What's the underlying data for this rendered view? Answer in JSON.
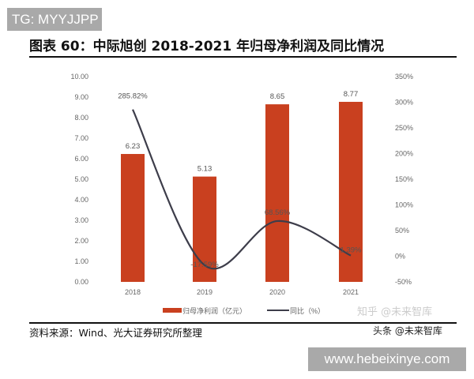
{
  "watermarks": {
    "top_left": "TG: MYYJJPP",
    "bottom_right": "www.hebeixinye.com",
    "toutiao": "头条 @未来智库",
    "zhihu": "知乎 @未来智库"
  },
  "title": "图表 60：中际旭创 2018-2021 年归母净利润及同比情况",
  "source": "资料来源：Wind、光大证券研究所整理",
  "colors": {
    "bar": "#c9401f",
    "line": "#3d3d4a"
  },
  "chart_data": {
    "type": "bar+line",
    "categories": [
      "2018",
      "2019",
      "2020",
      "2021"
    ],
    "series": [
      {
        "name": "归母净利润（亿元）",
        "type": "bar",
        "axis": "left",
        "values": [
          6.23,
          5.13,
          8.65,
          8.77
        ],
        "labels": [
          "6.23",
          "5.13",
          "8.65",
          "8.77"
        ]
      },
      {
        "name": "同比（%）",
        "type": "line",
        "axis": "right",
        "values": [
          285.82,
          -17.59,
          68.56,
          1.39
        ],
        "labels": [
          "285.82%",
          "-17.59%",
          "68.56%",
          "1.39%"
        ]
      }
    ],
    "left_axis": {
      "ylim": [
        0,
        10
      ],
      "ticks": [
        "0.00",
        "1.00",
        "2.00",
        "3.00",
        "4.00",
        "5.00",
        "6.00",
        "7.00",
        "8.00",
        "9.00",
        "10.00"
      ]
    },
    "right_axis": {
      "ylim": [
        -50,
        350
      ],
      "ticks": [
        "-50%",
        "0%",
        "50%",
        "100%",
        "150%",
        "200%",
        "250%",
        "300%",
        "350%"
      ]
    },
    "grid": false,
    "legend": "bottom"
  }
}
